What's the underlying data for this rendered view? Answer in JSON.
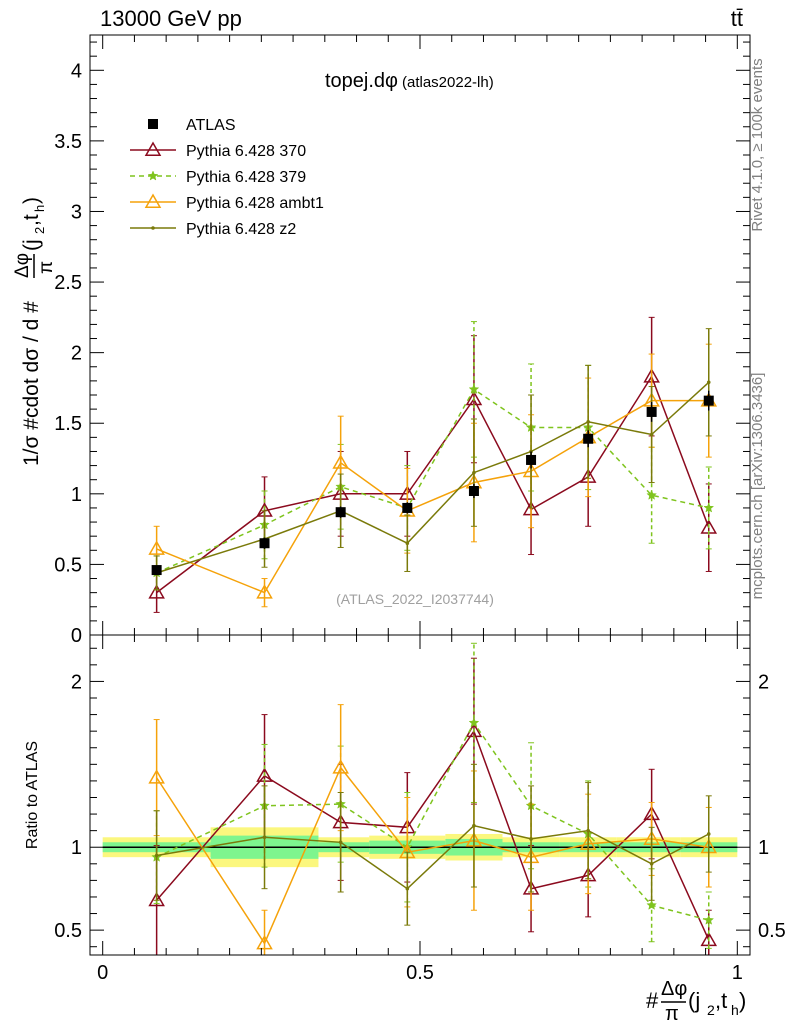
{
  "header": {
    "energy_label": "13000 GeV pp",
    "process_label": "tt̄",
    "plot_title": "topej.dφ",
    "plot_subtitle": "(atlas2022-lh)",
    "analysis_id": "(ATLAS_2022_I2037744)",
    "rivet_label": "Rivet 4.1.0, ≥ 100k events",
    "mcplots_label": "mcplots.cern.ch [arXiv:1306.3436]"
  },
  "colors": {
    "atlas": "#000000",
    "p370": "#8b0a1e",
    "p379": "#7fc41e",
    "ambt1": "#f5a20a",
    "z2": "#7a7a0a",
    "band_inner": "#7ef58e",
    "band_outer": "#fbf77e"
  },
  "chart_data": [
    {
      "type": "line",
      "panel": "main",
      "title": "topej.dφ (atlas2022-lh)",
      "xlabel": "#Δφ/π(j2,th)",
      "ylabel": "1/σ #cdot dσ / d #Δφ/π(j2,th)",
      "xlim": [
        -0.02,
        1.02
      ],
      "ylim": [
        0,
        4.25
      ],
      "ytick_labels": [
        "0",
        "0.5",
        "1",
        "1.5",
        "2",
        "2.5",
        "3",
        "3.5",
        "4"
      ],
      "x": [
        0.085,
        0.255,
        0.375,
        0.48,
        0.585,
        0.675,
        0.765,
        0.865,
        0.955
      ],
      "series": [
        {
          "key": "atlas",
          "name": "ATLAS",
          "values": [
            0.46,
            0.65,
            0.87,
            0.9,
            1.02,
            1.24,
            1.39,
            1.58,
            1.66
          ],
          "errors": [
            0.03,
            0.04,
            0.04,
            0.04,
            0.05,
            0.06,
            0.06,
            0.07,
            0.07
          ]
        },
        {
          "key": "p370",
          "name": "Pythia 6.428 370",
          "values": [
            0.3,
            0.88,
            1.0,
            1.0,
            1.67,
            0.89,
            1.12,
            1.83,
            0.76
          ],
          "errors": [
            0.14,
            0.24,
            0.3,
            0.3,
            0.45,
            0.32,
            0.35,
            0.42,
            0.31
          ]
        },
        {
          "key": "p379",
          "name": "Pythia 6.428 379",
          "values": [
            0.44,
            0.78,
            1.05,
            0.9,
            1.74,
            1.47,
            1.47,
            0.99,
            0.9
          ],
          "errors": [
            0.12,
            0.24,
            0.3,
            0.3,
            0.48,
            0.45,
            0.44,
            0.34,
            0.29
          ]
        },
        {
          "key": "ambt1",
          "name": "Pythia 6.428 ambt1",
          "values": [
            0.61,
            0.3,
            1.22,
            0.88,
            1.08,
            1.16,
            1.4,
            1.66,
            1.66
          ],
          "errors": [
            0.16,
            0.1,
            0.33,
            0.3,
            0.42,
            0.4,
            0.42,
            0.33,
            0.4
          ]
        },
        {
          "key": "z2",
          "name": "Pythia 6.428 z2",
          "values": [
            0.44,
            0.68,
            0.88,
            0.65,
            1.15,
            1.3,
            1.51,
            1.42,
            1.79
          ],
          "errors": [
            0.12,
            0.2,
            0.26,
            0.2,
            0.38,
            0.4,
            0.4,
            0.34,
            0.38
          ]
        }
      ]
    },
    {
      "type": "line",
      "panel": "ratio",
      "ylabel": "Ratio to ATLAS",
      "xlabel": "#Δφ/π(j2,th)",
      "xlim": [
        -0.02,
        1.02
      ],
      "ylim": [
        0.35,
        2.28
      ],
      "ytick_labels": [
        "0.5",
        "1",
        "2"
      ],
      "xtick_labels": [
        "0",
        "0.5",
        "1"
      ],
      "x": [
        0.085,
        0.255,
        0.375,
        0.48,
        0.585,
        0.675,
        0.765,
        0.865,
        0.955
      ],
      "bins": [
        [
          0.0,
          0.17
        ],
        [
          0.17,
          0.34
        ],
        [
          0.34,
          0.42
        ],
        [
          0.42,
          0.54
        ],
        [
          0.54,
          0.63
        ],
        [
          0.63,
          0.72
        ],
        [
          0.72,
          0.81
        ],
        [
          0.81,
          0.91
        ],
        [
          0.91,
          1.0
        ]
      ],
      "band_inner": [
        0.03,
        0.07,
        0.03,
        0.04,
        0.05,
        0.03,
        0.03,
        0.03,
        0.03
      ],
      "band_outer": [
        0.06,
        0.12,
        0.06,
        0.07,
        0.08,
        0.06,
        0.06,
        0.06,
        0.06
      ],
      "series": [
        {
          "key": "p370",
          "name": "Pythia 6.428 370",
          "values": [
            0.68,
            1.43,
            1.15,
            1.12,
            1.7,
            0.75,
            0.83,
            1.2,
            0.44
          ],
          "errors": [
            0.33,
            0.37,
            0.35,
            0.33,
            0.44,
            0.26,
            0.25,
            0.27,
            0.18
          ]
        },
        {
          "key": "p379",
          "name": "Pythia 6.428 379",
          "values": [
            0.94,
            1.25,
            1.26,
            1.0,
            1.75,
            1.25,
            1.08,
            0.65,
            0.56
          ],
          "errors": [
            0.28,
            0.37,
            0.35,
            0.33,
            0.48,
            0.38,
            0.32,
            0.22,
            0.17
          ]
        },
        {
          "key": "ambt1",
          "name": "Pythia 6.428 ambt1",
          "values": [
            1.42,
            0.42,
            1.48,
            0.97,
            1.04,
            0.94,
            1.02,
            1.05,
            1.0
          ],
          "errors": [
            0.35,
            0.2,
            0.38,
            0.33,
            0.42,
            0.32,
            0.3,
            0.22,
            0.24
          ]
        },
        {
          "key": "z2",
          "name": "Pythia 6.428 z2",
          "values": [
            0.95,
            1.06,
            1.03,
            0.75,
            1.13,
            1.05,
            1.1,
            0.9,
            1.08
          ],
          "errors": [
            0.27,
            0.31,
            0.3,
            0.22,
            0.37,
            0.32,
            0.29,
            0.22,
            0.23
          ]
        }
      ]
    }
  ]
}
